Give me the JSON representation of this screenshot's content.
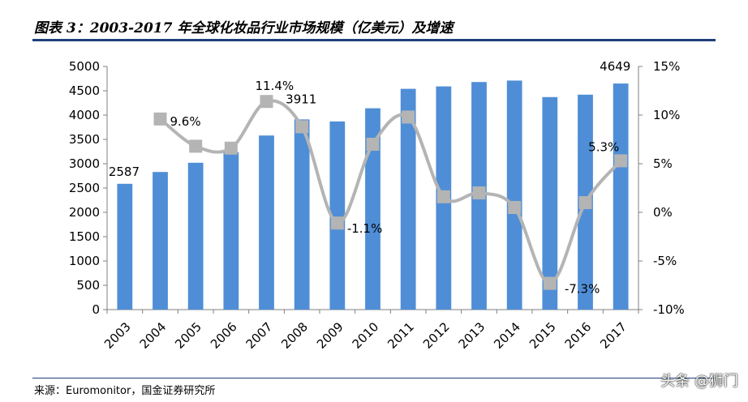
{
  "title": "图表 3：2003-2017 年全球化妆品行业市场规模（亿美元）及增速",
  "source": "来源：Euromonitor，国金证券研究所",
  "watermark": "头条 @狮门",
  "chart_data": {
    "type": "bar+line",
    "categories": [
      "2003",
      "2004",
      "2005",
      "2006",
      "2007",
      "2008",
      "2009",
      "2010",
      "2011",
      "2012",
      "2013",
      "2014",
      "2015",
      "2016",
      "2017"
    ],
    "series": [
      {
        "type": "bar",
        "axis": "left",
        "color": "#4f8ed6",
        "values": [
          2587,
          2830,
          3020,
          3240,
          3580,
          3911,
          3870,
          4140,
          4540,
          4590,
          4680,
          4710,
          4370,
          4420,
          4649
        ]
      },
      {
        "type": "line",
        "axis": "right",
        "color": "#b4b4b4",
        "marker_color": "#b4b4b4",
        "values": [
          null,
          9.6,
          6.8,
          6.6,
          11.4,
          8.8,
          -1.1,
          7.0,
          9.8,
          1.6,
          2.0,
          0.5,
          -7.3,
          1.0,
          5.3
        ]
      }
    ],
    "y_left": {
      "ticks": [
        "0",
        "500",
        "1000",
        "1500",
        "2000",
        "2500",
        "3000",
        "3500",
        "4000",
        "4500",
        "5000"
      ],
      "ylim": [
        0,
        5000
      ]
    },
    "y_right": {
      "ticks": [
        "-10%",
        "-5%",
        "0%",
        "5%",
        "10%",
        "15%"
      ],
      "ylim": [
        -10,
        15
      ]
    },
    "data_labels": [
      {
        "series": 0,
        "index": 0,
        "text": "2587"
      },
      {
        "series": 0,
        "index": 5,
        "text": "3911"
      },
      {
        "series": 0,
        "index": 14,
        "text": "4649"
      },
      {
        "series": 1,
        "index": 1,
        "text": "9.6%"
      },
      {
        "series": 1,
        "index": 4,
        "text": "11.4%"
      },
      {
        "series": 1,
        "index": 6,
        "text": "-1.1%"
      },
      {
        "series": 1,
        "index": 12,
        "text": "-7.3%"
      },
      {
        "series": 1,
        "index": 14,
        "text": "5.3%"
      }
    ],
    "grid": false,
    "legend": "none"
  }
}
